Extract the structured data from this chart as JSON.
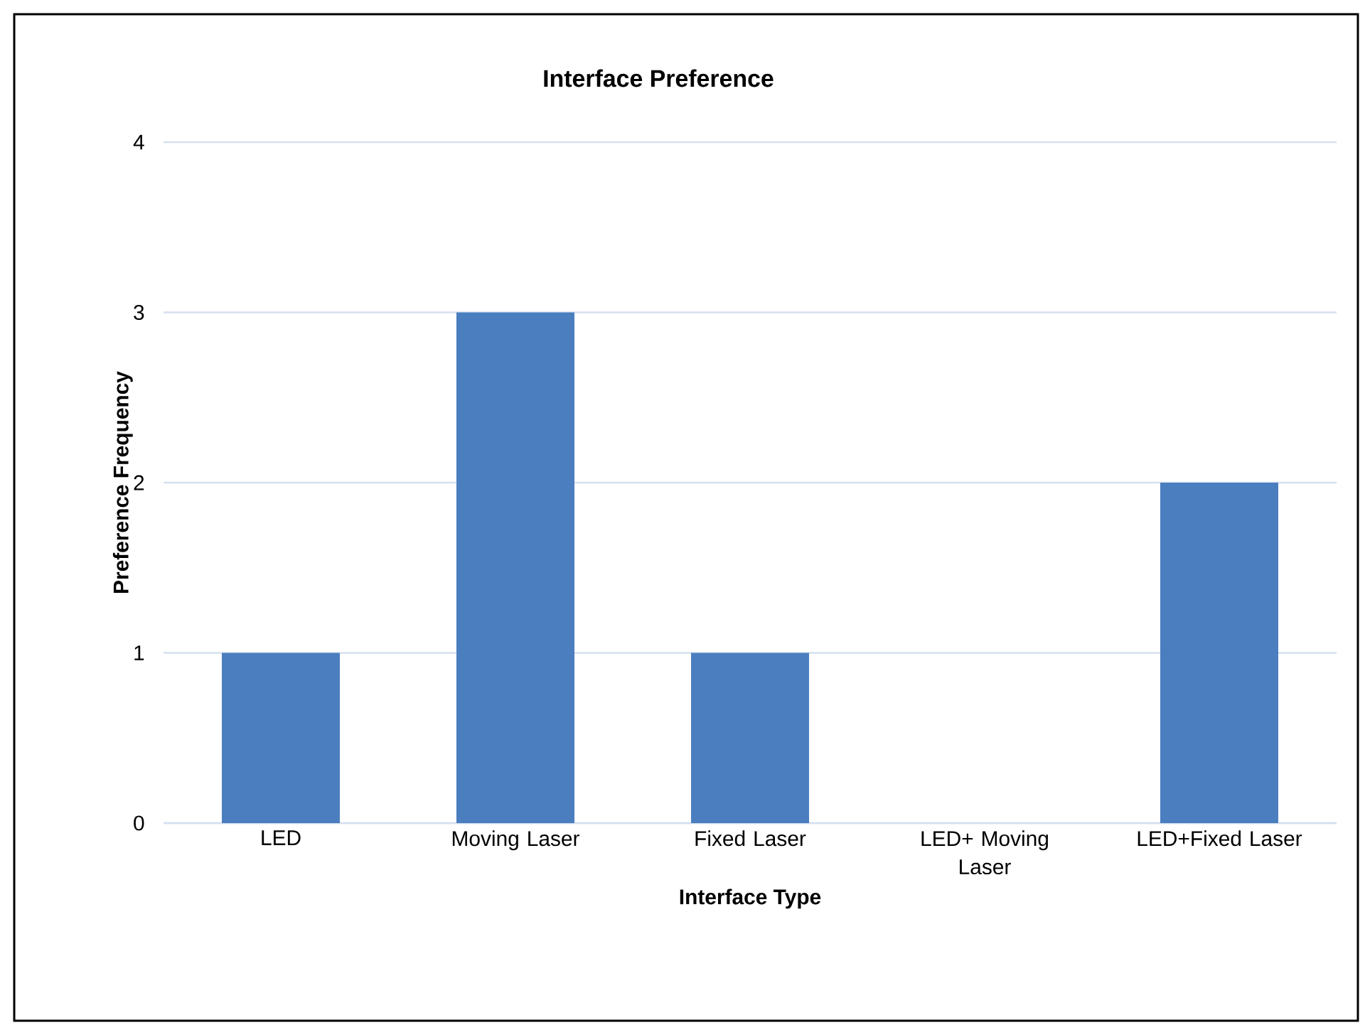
{
  "chart_data": {
    "type": "bar",
    "title": "Interface Preference",
    "xlabel": "Interface Type",
    "ylabel": "Preference Frequency",
    "categories": [
      "LED",
      "Moving Laser",
      "Fixed Laser",
      "LED+ Moving Laser",
      "LED+Fixed Laser"
    ],
    "values": [
      1,
      3,
      1,
      0,
      2
    ],
    "color": "#4a7ebf",
    "ylim": [
      0,
      4
    ],
    "yticks": [
      0,
      1,
      2,
      3,
      4
    ],
    "grid": "y"
  }
}
